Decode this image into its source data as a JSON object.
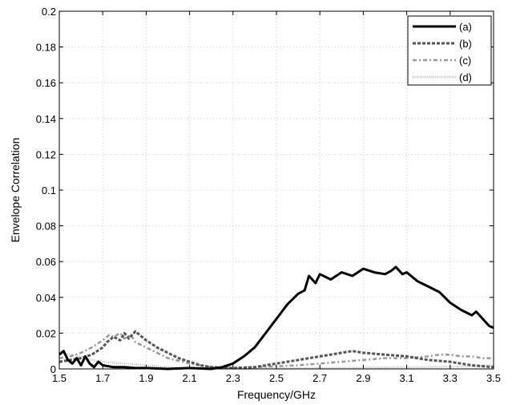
{
  "chart_data": {
    "type": "line",
    "title": "",
    "xlabel": "Frequency/GHz",
    "ylabel": "Envelope Correlation",
    "xlim": [
      1.5,
      3.5
    ],
    "ylim": [
      0,
      0.2
    ],
    "xticks": [
      1.5,
      1.7,
      1.9,
      2.1,
      2.3,
      2.5,
      2.7,
      2.9,
      3.1,
      3.3,
      3.5
    ],
    "xtick_labels": [
      "1.5",
      "1.7",
      "1.9",
      "2.1",
      "2.3",
      "2.5",
      "2.7",
      "2.9",
      "3.1",
      "3.3",
      "3.5"
    ],
    "yticks": [
      0,
      0.02,
      0.04,
      0.06,
      0.08,
      0.1,
      0.12,
      0.14,
      0.16,
      0.18,
      0.2
    ],
    "ytick_labels": [
      "0",
      "0.02",
      "0.04",
      "0.06",
      "0.08",
      "0.1",
      "0.12",
      "0.14",
      "0.16",
      "0.18",
      "0.2"
    ],
    "grid": true,
    "legend_position": "top-right",
    "series": [
      {
        "name": "(a)",
        "color": "#000000",
        "style": "solid",
        "x": [
          1.5,
          1.52,
          1.54,
          1.56,
          1.58,
          1.6,
          1.62,
          1.64,
          1.66,
          1.68,
          1.7,
          1.75,
          1.8,
          1.85,
          1.9,
          2.0,
          2.1,
          2.2,
          2.25,
          2.3,
          2.35,
          2.4,
          2.45,
          2.5,
          2.55,
          2.6,
          2.63,
          2.65,
          2.68,
          2.7,
          2.75,
          2.8,
          2.85,
          2.9,
          2.95,
          3.0,
          3.03,
          3.05,
          3.08,
          3.1,
          3.15,
          3.2,
          3.25,
          3.3,
          3.35,
          3.4,
          3.42,
          3.45,
          3.48,
          3.5
        ],
        "y": [
          0.008,
          0.01,
          0.005,
          0.003,
          0.006,
          0.002,
          0.007,
          0.003,
          0.001,
          0.004,
          0.002,
          0.001,
          0.001,
          0.0005,
          0.0005,
          0.0,
          0.0005,
          0.0,
          0.001,
          0.003,
          0.007,
          0.012,
          0.02,
          0.028,
          0.036,
          0.042,
          0.044,
          0.052,
          0.048,
          0.053,
          0.05,
          0.054,
          0.052,
          0.056,
          0.054,
          0.053,
          0.055,
          0.057,
          0.053,
          0.054,
          0.049,
          0.046,
          0.043,
          0.037,
          0.033,
          0.03,
          0.032,
          0.028,
          0.024,
          0.023
        ]
      },
      {
        "name": "(b)",
        "color": "#555555",
        "style": "dashed",
        "x": [
          1.5,
          1.55,
          1.6,
          1.65,
          1.7,
          1.72,
          1.75,
          1.78,
          1.8,
          1.82,
          1.85,
          1.88,
          1.9,
          1.95,
          2.0,
          2.05,
          2.1,
          2.15,
          2.2,
          2.3,
          2.4,
          2.5,
          2.6,
          2.7,
          2.8,
          2.85,
          2.9,
          3.0,
          3.1,
          3.2,
          3.3,
          3.4,
          3.5
        ],
        "y": [
          0.004,
          0.005,
          0.006,
          0.008,
          0.012,
          0.015,
          0.018,
          0.016,
          0.02,
          0.017,
          0.021,
          0.018,
          0.016,
          0.012,
          0.009,
          0.006,
          0.004,
          0.002,
          0.001,
          0.0005,
          0.001,
          0.003,
          0.005,
          0.007,
          0.009,
          0.01,
          0.009,
          0.008,
          0.007,
          0.005,
          0.004,
          0.002,
          0.001
        ]
      },
      {
        "name": "(c)",
        "color": "#999999",
        "style": "dashdot",
        "x": [
          1.5,
          1.55,
          1.6,
          1.65,
          1.7,
          1.73,
          1.75,
          1.78,
          1.8,
          1.83,
          1.85,
          1.9,
          1.95,
          2.0,
          2.1,
          2.2,
          2.3,
          2.4,
          2.5,
          2.6,
          2.7,
          2.8,
          2.9,
          3.0,
          3.1,
          3.2,
          3.25,
          3.3,
          3.35,
          3.4,
          3.45,
          3.5
        ],
        "y": [
          0.006,
          0.007,
          0.009,
          0.012,
          0.016,
          0.019,
          0.018,
          0.02,
          0.017,
          0.019,
          0.015,
          0.012,
          0.009,
          0.006,
          0.003,
          0.001,
          0.0005,
          0.001,
          0.0015,
          0.002,
          0.003,
          0.004,
          0.005,
          0.006,
          0.006,
          0.007,
          0.008,
          0.008,
          0.007,
          0.007,
          0.006,
          0.006
        ]
      },
      {
        "name": "(d)",
        "color": "#bbbbbb",
        "style": "dotted",
        "x": [
          1.5,
          1.55,
          1.6,
          1.65,
          1.7,
          1.8,
          1.9,
          2.0,
          2.1,
          2.2,
          2.4,
          2.6,
          2.8,
          3.0,
          3.2,
          3.4,
          3.5
        ],
        "y": [
          0.009,
          0.008,
          0.007,
          0.005,
          0.004,
          0.003,
          0.002,
          0.001,
          0.0005,
          0.0003,
          0.0003,
          0.0004,
          0.0006,
          0.0008,
          0.001,
          0.0015,
          0.002
        ]
      }
    ]
  }
}
